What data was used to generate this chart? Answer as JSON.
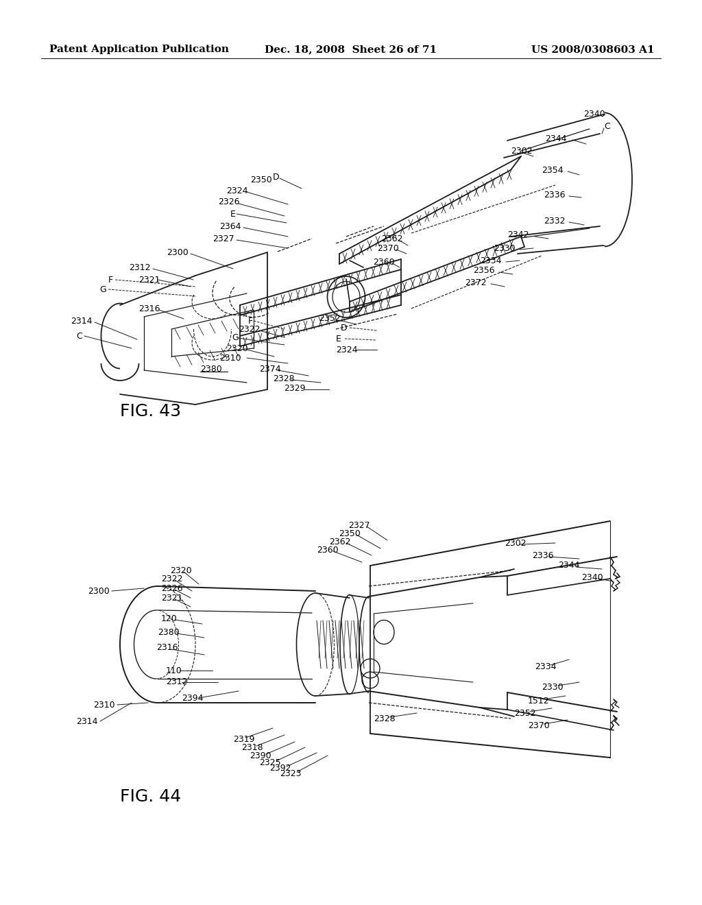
{
  "background_color": "#ffffff",
  "header_left": "Patent Application Publication",
  "header_mid": "Dec. 18, 2008  Sheet 26 of 71",
  "header_right": "US 2008/0308603 A1",
  "fig43_label": "FIG. 43",
  "fig44_label": "FIG. 44",
  "header_fontsize": 11,
  "label_fontsize": 9,
  "fig_label_fontsize": 18,
  "line_color": "#1a1a1a",
  "text_color": "#000000"
}
